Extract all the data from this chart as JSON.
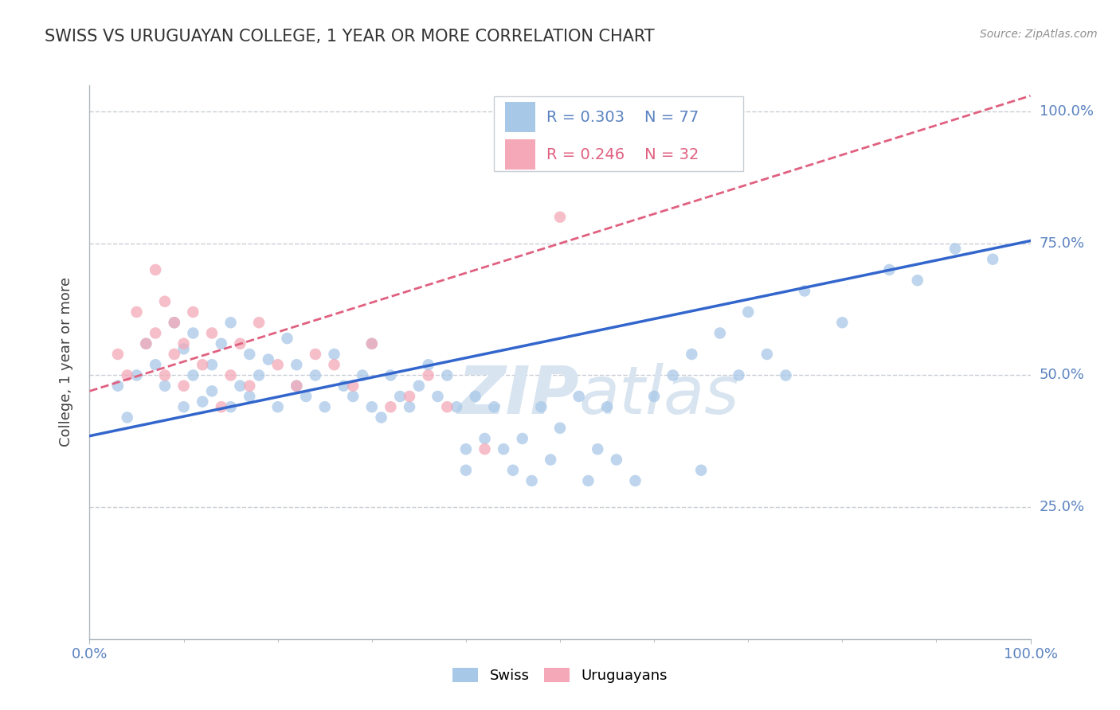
{
  "title": "SWISS VS URUGUAYAN COLLEGE, 1 YEAR OR MORE CORRELATION CHART",
  "source_text": "Source: ZipAtlas.com",
  "ylabel": "College, 1 year or more",
  "xlim": [
    0,
    1
  ],
  "ylim": [
    0,
    1.05
  ],
  "xtick_positions": [
    0,
    1.0
  ],
  "xtick_labels": [
    "0.0%",
    "100.0%"
  ],
  "ytick_positions": [
    0.25,
    0.5,
    0.75,
    1.0
  ],
  "ytick_labels": [
    "25.0%",
    "50.0%",
    "75.0%",
    "100.0%"
  ],
  "swiss_color": "#a8c8e8",
  "uruguayan_color": "#f4a8b8",
  "swiss_line_color": "#3366cc",
  "uruguayan_line_color": "#e06080",
  "grid_color": "#c8cdd4",
  "watermark_color": "#d8e4f0",
  "background_color": "#ffffff",
  "legend_r_swiss": "R = 0.303",
  "legend_n_swiss": "N = 77",
  "legend_r_uruguayan": "R = 0.246",
  "legend_n_uruguayan": "N = 32",
  "swiss_trend_x0": 0.0,
  "swiss_trend_y0": 0.385,
  "swiss_trend_x1": 1.0,
  "swiss_trend_y1": 0.755,
  "uruguayan_trend_x0": 0.0,
  "uruguayan_trend_y0": 0.47,
  "uruguayan_trend_x1": 1.0,
  "uruguayan_trend_y1": 1.03,
  "swiss_x": [
    0.03,
    0.04,
    0.05,
    0.06,
    0.07,
    0.08,
    0.09,
    0.1,
    0.1,
    0.11,
    0.11,
    0.12,
    0.13,
    0.13,
    0.14,
    0.15,
    0.15,
    0.16,
    0.17,
    0.17,
    0.18,
    0.19,
    0.2,
    0.21,
    0.22,
    0.22,
    0.23,
    0.24,
    0.25,
    0.26,
    0.27,
    0.28,
    0.29,
    0.3,
    0.3,
    0.31,
    0.32,
    0.33,
    0.34,
    0.35,
    0.36,
    0.37,
    0.38,
    0.39,
    0.4,
    0.4,
    0.41,
    0.42,
    0.43,
    0.44,
    0.45,
    0.46,
    0.47,
    0.48,
    0.49,
    0.5,
    0.52,
    0.53,
    0.54,
    0.55,
    0.56,
    0.58,
    0.6,
    0.62,
    0.64,
    0.65,
    0.67,
    0.69,
    0.7,
    0.72,
    0.74,
    0.76,
    0.8,
    0.85,
    0.88,
    0.92,
    0.96
  ],
  "swiss_y": [
    0.48,
    0.42,
    0.5,
    0.56,
    0.52,
    0.48,
    0.6,
    0.55,
    0.44,
    0.5,
    0.58,
    0.45,
    0.52,
    0.47,
    0.56,
    0.44,
    0.6,
    0.48,
    0.54,
    0.46,
    0.5,
    0.53,
    0.44,
    0.57,
    0.48,
    0.52,
    0.46,
    0.5,
    0.44,
    0.54,
    0.48,
    0.46,
    0.5,
    0.44,
    0.56,
    0.42,
    0.5,
    0.46,
    0.44,
    0.48,
    0.52,
    0.46,
    0.5,
    0.44,
    0.32,
    0.36,
    0.46,
    0.38,
    0.44,
    0.36,
    0.32,
    0.38,
    0.3,
    0.44,
    0.34,
    0.4,
    0.46,
    0.3,
    0.36,
    0.44,
    0.34,
    0.3,
    0.46,
    0.5,
    0.54,
    0.32,
    0.58,
    0.5,
    0.62,
    0.54,
    0.5,
    0.66,
    0.6,
    0.7,
    0.68,
    0.74,
    0.72
  ],
  "uruguayan_x": [
    0.03,
    0.04,
    0.05,
    0.06,
    0.07,
    0.07,
    0.08,
    0.08,
    0.09,
    0.09,
    0.1,
    0.1,
    0.11,
    0.12,
    0.13,
    0.14,
    0.15,
    0.16,
    0.17,
    0.18,
    0.2,
    0.22,
    0.24,
    0.26,
    0.28,
    0.3,
    0.32,
    0.34,
    0.36,
    0.38,
    0.42,
    0.5
  ],
  "uruguayan_y": [
    0.54,
    0.5,
    0.62,
    0.56,
    0.7,
    0.58,
    0.64,
    0.5,
    0.6,
    0.54,
    0.56,
    0.48,
    0.62,
    0.52,
    0.58,
    0.44,
    0.5,
    0.56,
    0.48,
    0.6,
    0.52,
    0.48,
    0.54,
    0.52,
    0.48,
    0.56,
    0.44,
    0.46,
    0.5,
    0.44,
    0.36,
    0.8
  ]
}
